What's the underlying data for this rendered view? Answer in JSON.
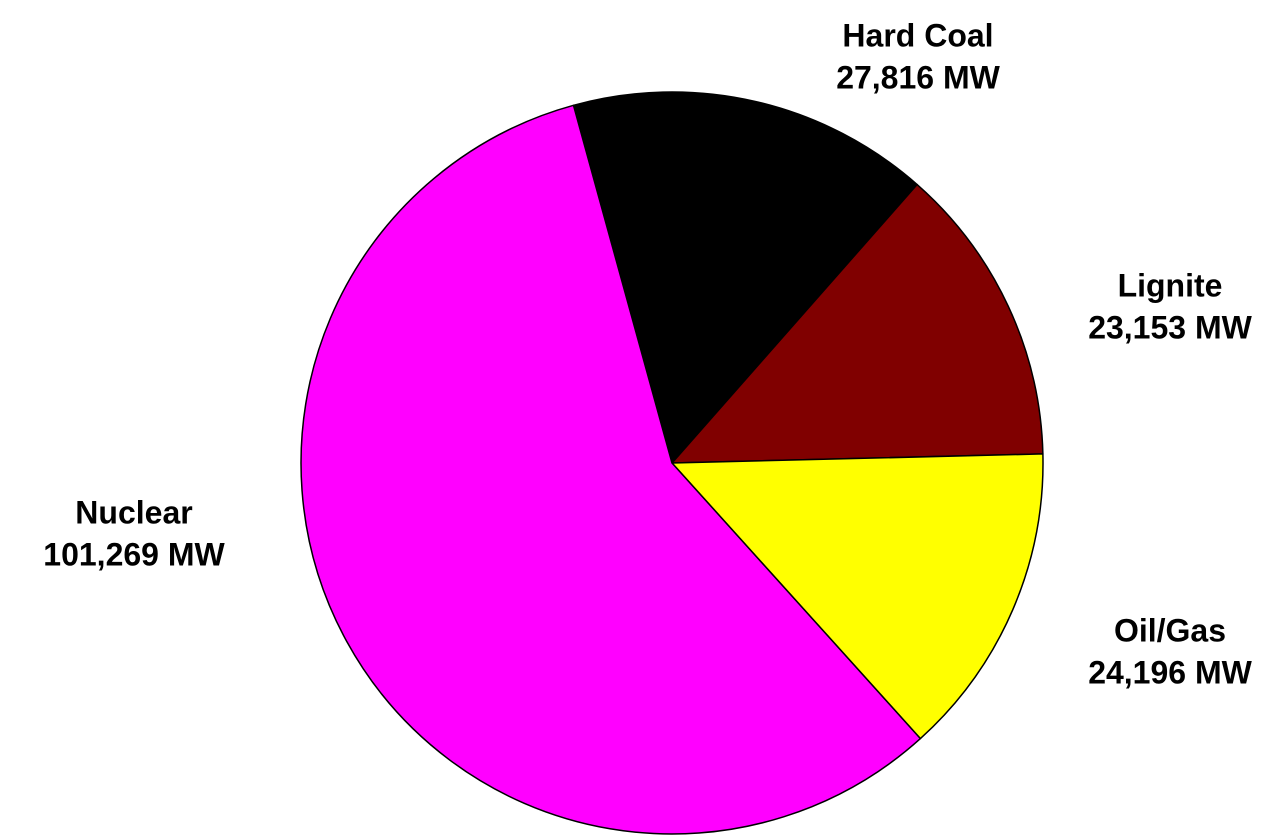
{
  "chart_data": {
    "type": "pie",
    "unit": "MW",
    "slices": [
      {
        "category": "Hard Coal",
        "value": 27816,
        "value_label": "27,816 MW",
        "color": "#000000"
      },
      {
        "category": "Lignite",
        "value": 23153,
        "value_label": "23,153 MW",
        "color": "#800000"
      },
      {
        "category": "Oil/Gas",
        "value": 24196,
        "value_label": "24,196 MW",
        "color": "#FFFF00"
      },
      {
        "category": "Nuclear",
        "value": 101269,
        "value_label": "101,269 MW",
        "color": "#FF00FF"
      }
    ],
    "title": ""
  }
}
